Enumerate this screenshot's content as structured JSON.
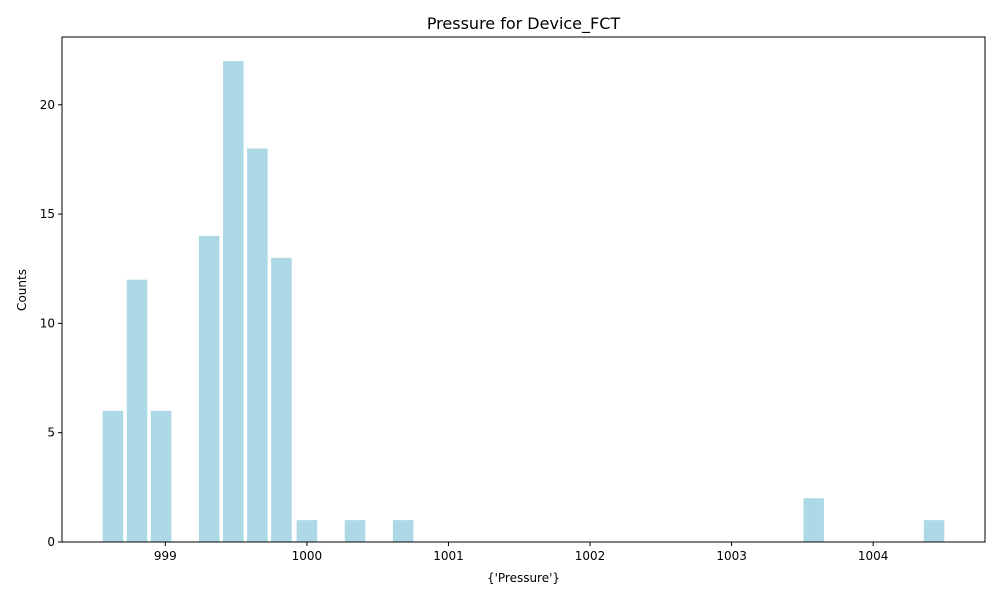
{
  "chart_data": {
    "type": "bar",
    "title": "Pressure for Device_FCT",
    "xlabel": "{'Pressure'}",
    "ylabel": "Counts",
    "bar_color": "#add8e6",
    "bar_width": 0.145,
    "x": [
      998.63,
      998.8,
      998.97,
      999.31,
      999.48,
      999.65,
      999.82,
      1000.0,
      1000.34,
      1000.68,
      1003.58,
      1004.43
    ],
    "values": [
      6,
      12,
      6,
      14,
      22,
      18,
      13,
      1,
      1,
      1,
      2,
      1
    ],
    "xlim": [
      998.27,
      1004.79
    ],
    "ylim": [
      0,
      23.1
    ],
    "xticks": [
      999,
      1000,
      1001,
      1002,
      1003,
      1004
    ],
    "yticks": [
      0,
      5,
      10,
      15,
      20
    ],
    "grid": false
  }
}
